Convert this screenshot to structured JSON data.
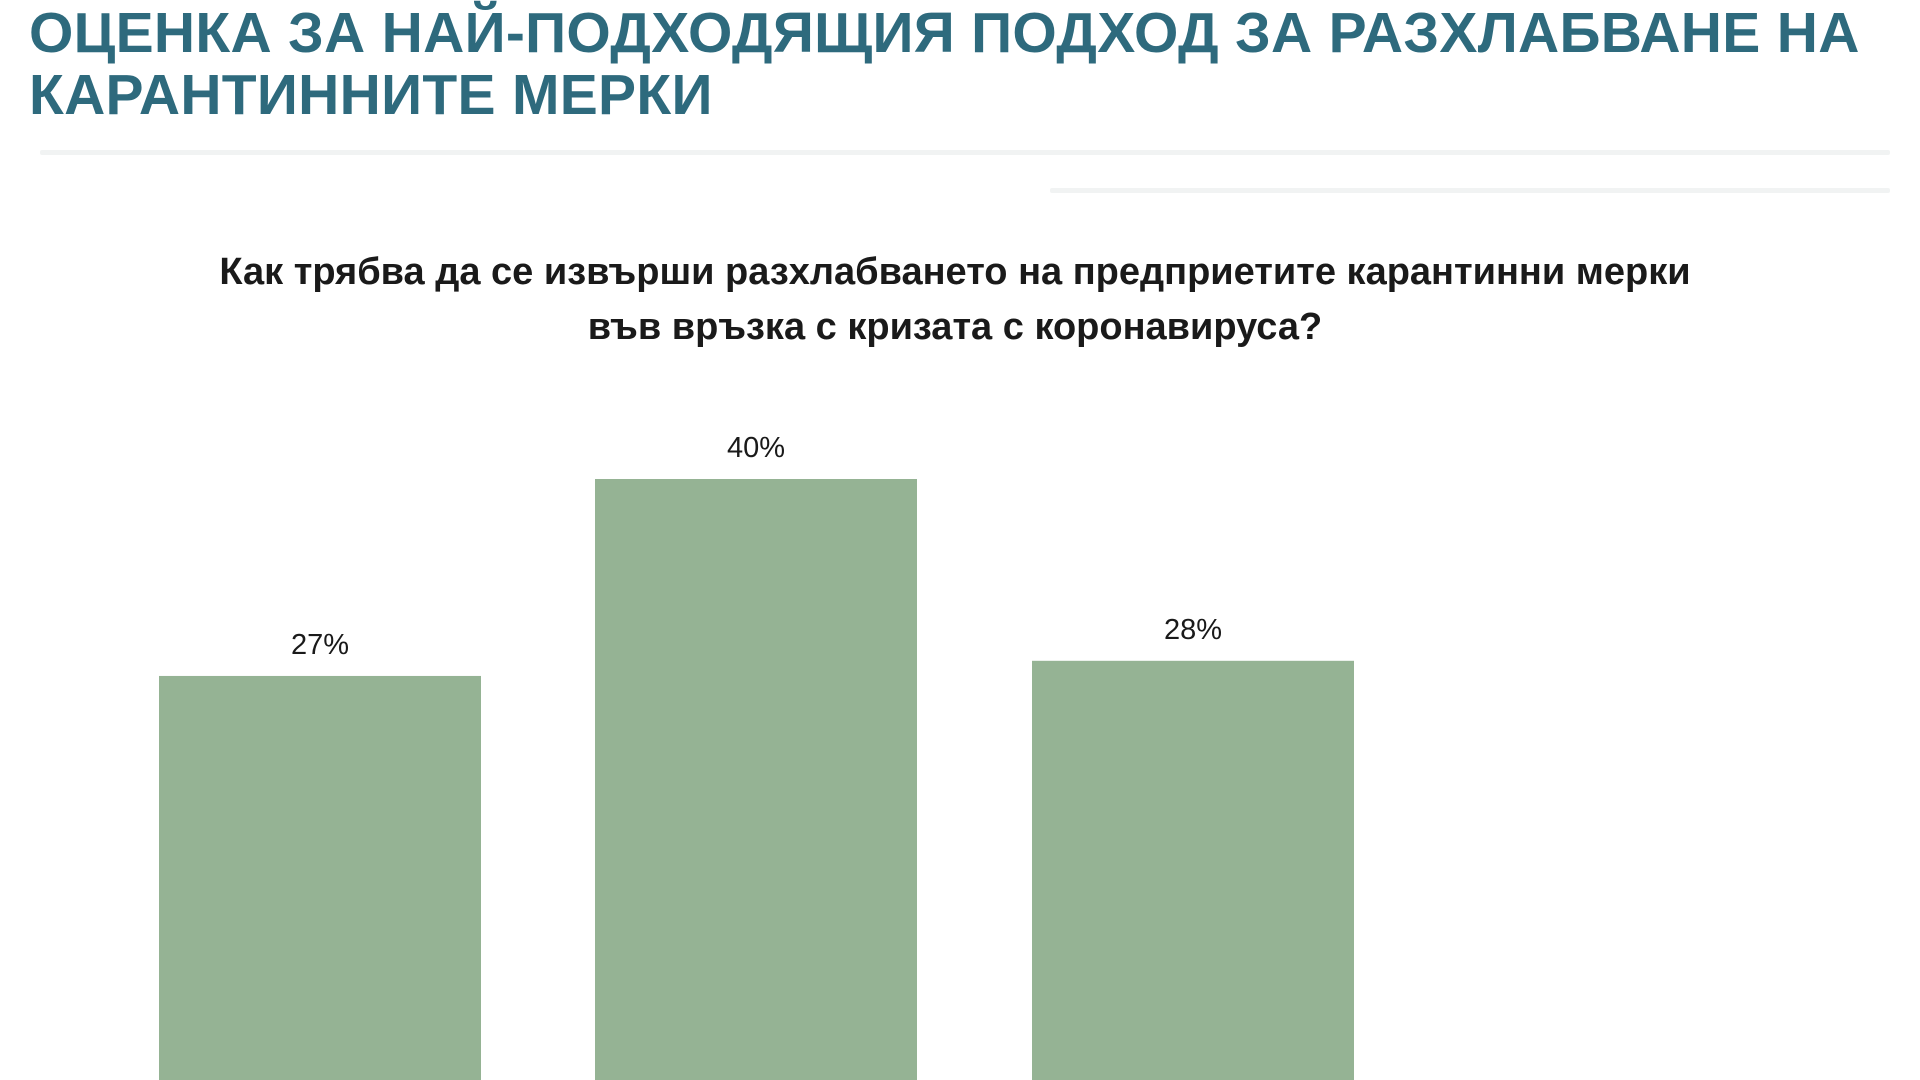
{
  "slide": {
    "title": "ОЦЕНКА ЗА НАЙ-ПОДХОДЯЩИЯ ПОДХОД ЗА РАЗХЛАБВАНЕ НА КАРАНТИННИТЕ МЕРКИ"
  },
  "chart_data": {
    "type": "bar",
    "title": "Как трябва да се извърши разхлабването на предприетите карантинни мерки във връзка с кризата с коронавируса?",
    "categories": [
      "",
      "",
      ""
    ],
    "values": [
      27,
      40,
      28
    ],
    "data_labels": [
      "27%",
      "40%",
      "28%"
    ],
    "unit": "%",
    "color": "#95b394",
    "ylim": [
      0,
      40
    ],
    "grid": false,
    "legend": "none"
  }
}
